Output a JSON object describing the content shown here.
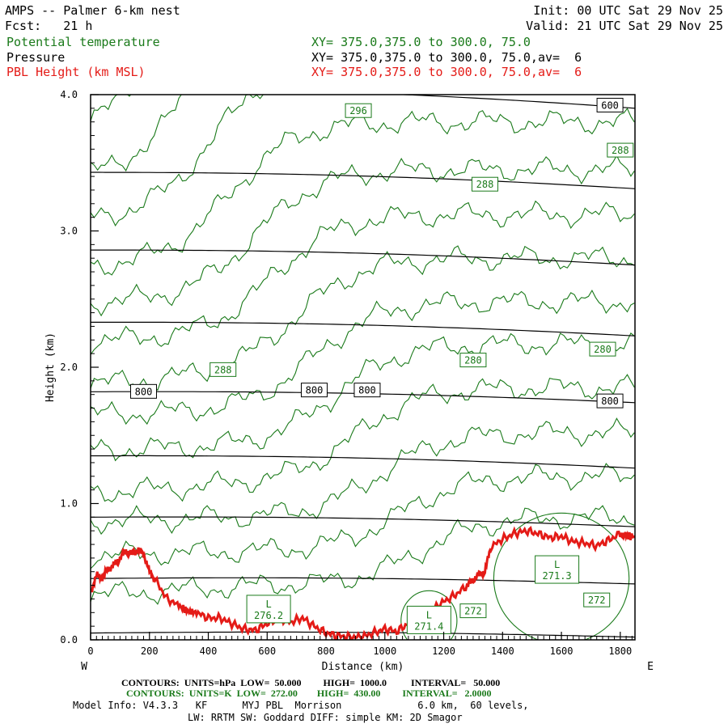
{
  "header": {
    "title": "AMPS -- Palmer 6-km nest",
    "init": "Init: 00 UTC Sat 29 Nov 25",
    "fcst": "Fcst:   21 h",
    "valid": "Valid: 21 UTC Sat 29 Nov 25",
    "fields": [
      {
        "name": "Potential temperature",
        "xy": "XY= 375.0,375.0 to 300.0, 75.0",
        "color": "#1a7a1a"
      },
      {
        "name": "Pressure",
        "xy": "XY= 375.0,375.0 to 300.0, 75.0,av=  6",
        "color": "#000000"
      },
      {
        "name": "PBL Height (km MSL)",
        "xy": "XY= 375.0,375.0 to 300.0, 75.0,av=  6",
        "color": "#e41b17"
      }
    ]
  },
  "footer": {
    "contours_p": "CONTOURS:  UNITS=hPa  LOW=  50.000         HIGH=  1000.0          INTERVAL=   50.000",
    "contours_t": "CONTOURS:  UNITS=K  LOW=  272.00        HIGH=  430.00         INTERVAL=   2.0000",
    "model_info": "Model Info: V4.3.3   KF      MYJ PBL  Morrison             6.0 km,  60 levels,",
    "physics": "LW: RRTM SW: Goddard DIFF: simple KM: 2D Smagor"
  },
  "chart_data": {
    "type": "line",
    "title": "AMPS -- Palmer 6-km nest",
    "xlabel": "Distance (km)",
    "ylabel": "Height (km)",
    "xlim": [
      0,
      1850
    ],
    "ylim": [
      0,
      4
    ],
    "x_ticks": [
      0,
      200,
      400,
      600,
      800,
      1000,
      1200,
      1400,
      1600,
      1800
    ],
    "y_ticks": [
      0.0,
      1.0,
      2.0,
      3.0,
      4.0
    ],
    "y_tick_labels": [
      "0.0",
      "1.0",
      "2.0",
      "3.0",
      "4.0"
    ],
    "left_label": "W",
    "right_label": "E",
    "colors": {
      "theta": "#1a7a1a",
      "pressure": "#000000",
      "pbl": "#e41b17"
    },
    "pressure_contours": [
      {
        "y0": 0.05,
        "y1": 0.02
      },
      {
        "y0": 0.45,
        "y1": 0.41
      },
      {
        "y0": 0.9,
        "y1": 0.83
      },
      {
        "y0": 1.35,
        "y1": 1.26
      },
      {
        "y0": 1.82,
        "y1": 1.74
      },
      {
        "y0": 2.33,
        "y1": 2.23
      },
      {
        "y0": 2.86,
        "y1": 2.75
      },
      {
        "y0": 3.43,
        "y1": 3.31
      },
      {
        "y0": 4.05,
        "y1": 3.9
      }
    ],
    "pressure_labels": [
      {
        "text": "600",
        "x": 1765,
        "y": 3.92
      },
      {
        "text": "800",
        "x": 180,
        "y": 1.82
      },
      {
        "text": "800",
        "x": 760,
        "y": 1.83
      },
      {
        "text": "800",
        "x": 940,
        "y": 1.83
      },
      {
        "text": "800",
        "x": 1765,
        "y": 1.75
      }
    ],
    "theta_labels": [
      {
        "text": "296",
        "x": 910,
        "y": 3.88
      },
      {
        "text": "288",
        "x": 1800,
        "y": 3.59
      },
      {
        "text": "288",
        "x": 1340,
        "y": 3.34
      },
      {
        "text": "288",
        "x": 450,
        "y": 1.98
      },
      {
        "text": "280",
        "x": 1300,
        "y": 2.05
      },
      {
        "text": "280",
        "x": 1740,
        "y": 2.13
      },
      {
        "text": "272",
        "x": 1300,
        "y": 0.21
      },
      {
        "text": "272",
        "x": 1720,
        "y": 0.29
      }
    ],
    "lows": [
      {
        "text": "L",
        "value": "276.2",
        "x": 605,
        "y": 0.22
      },
      {
        "text": "L",
        "value": "271.4",
        "x": 1150,
        "y": 0.14
      },
      {
        "text": "L",
        "value": "271.3",
        "x": 1585,
        "y": 0.51
      }
    ],
    "pbl_height": {
      "x": [
        0,
        20,
        40,
        60,
        80,
        100,
        120,
        140,
        160,
        180,
        200,
        220,
        260,
        300,
        330,
        360,
        400,
        440,
        480,
        520,
        560,
        600,
        640,
        680,
        720,
        760,
        800,
        840,
        880,
        920,
        960,
        1000,
        1040,
        1080,
        1120,
        1160,
        1200,
        1240,
        1280,
        1300,
        1320,
        1340,
        1360,
        1400,
        1440,
        1480,
        1520,
        1560,
        1600,
        1640,
        1680,
        1720,
        1760,
        1800,
        1820,
        1850
      ],
      "y": [
        0.35,
        0.47,
        0.46,
        0.52,
        0.55,
        0.6,
        0.65,
        0.63,
        0.66,
        0.63,
        0.5,
        0.44,
        0.3,
        0.25,
        0.21,
        0.2,
        0.16,
        0.16,
        0.12,
        0.08,
        0.07,
        0.12,
        0.16,
        0.13,
        0.16,
        0.1,
        0.05,
        0.03,
        0.02,
        0.02,
        0.05,
        0.08,
        0.06,
        0.12,
        0.16,
        0.22,
        0.28,
        0.33,
        0.4,
        0.44,
        0.48,
        0.5,
        0.68,
        0.74,
        0.78,
        0.8,
        0.78,
        0.75,
        0.76,
        0.72,
        0.71,
        0.69,
        0.73,
        0.78,
        0.76,
        0.76
      ]
    }
  }
}
